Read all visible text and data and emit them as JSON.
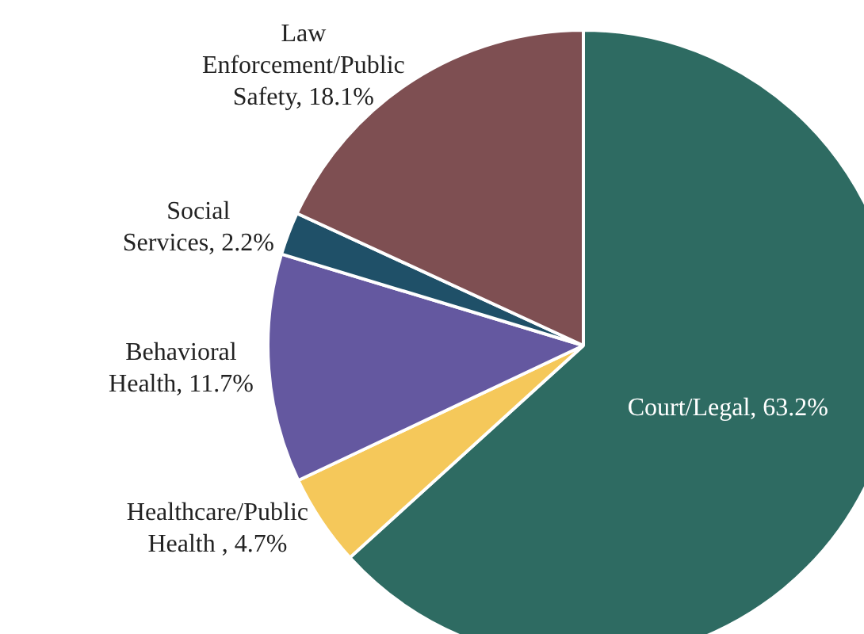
{
  "chart_data": {
    "type": "pie",
    "categories": [
      "Court/Legal",
      "Healthcare/Public Health ",
      "Behavioral Health",
      "Social Services",
      "Law Enforcement/Public Safety"
    ],
    "values": [
      63.2,
      4.7,
      11.7,
      2.2,
      18.1
    ],
    "value_labels": [
      "63.2%",
      "4.7%",
      "11.7%",
      "2.2%",
      "18.1%"
    ],
    "colors": [
      "#2e6b62",
      "#f5c85a",
      "#6458a0",
      "#1f5068",
      "#7e4f52"
    ],
    "legend": false
  }
}
